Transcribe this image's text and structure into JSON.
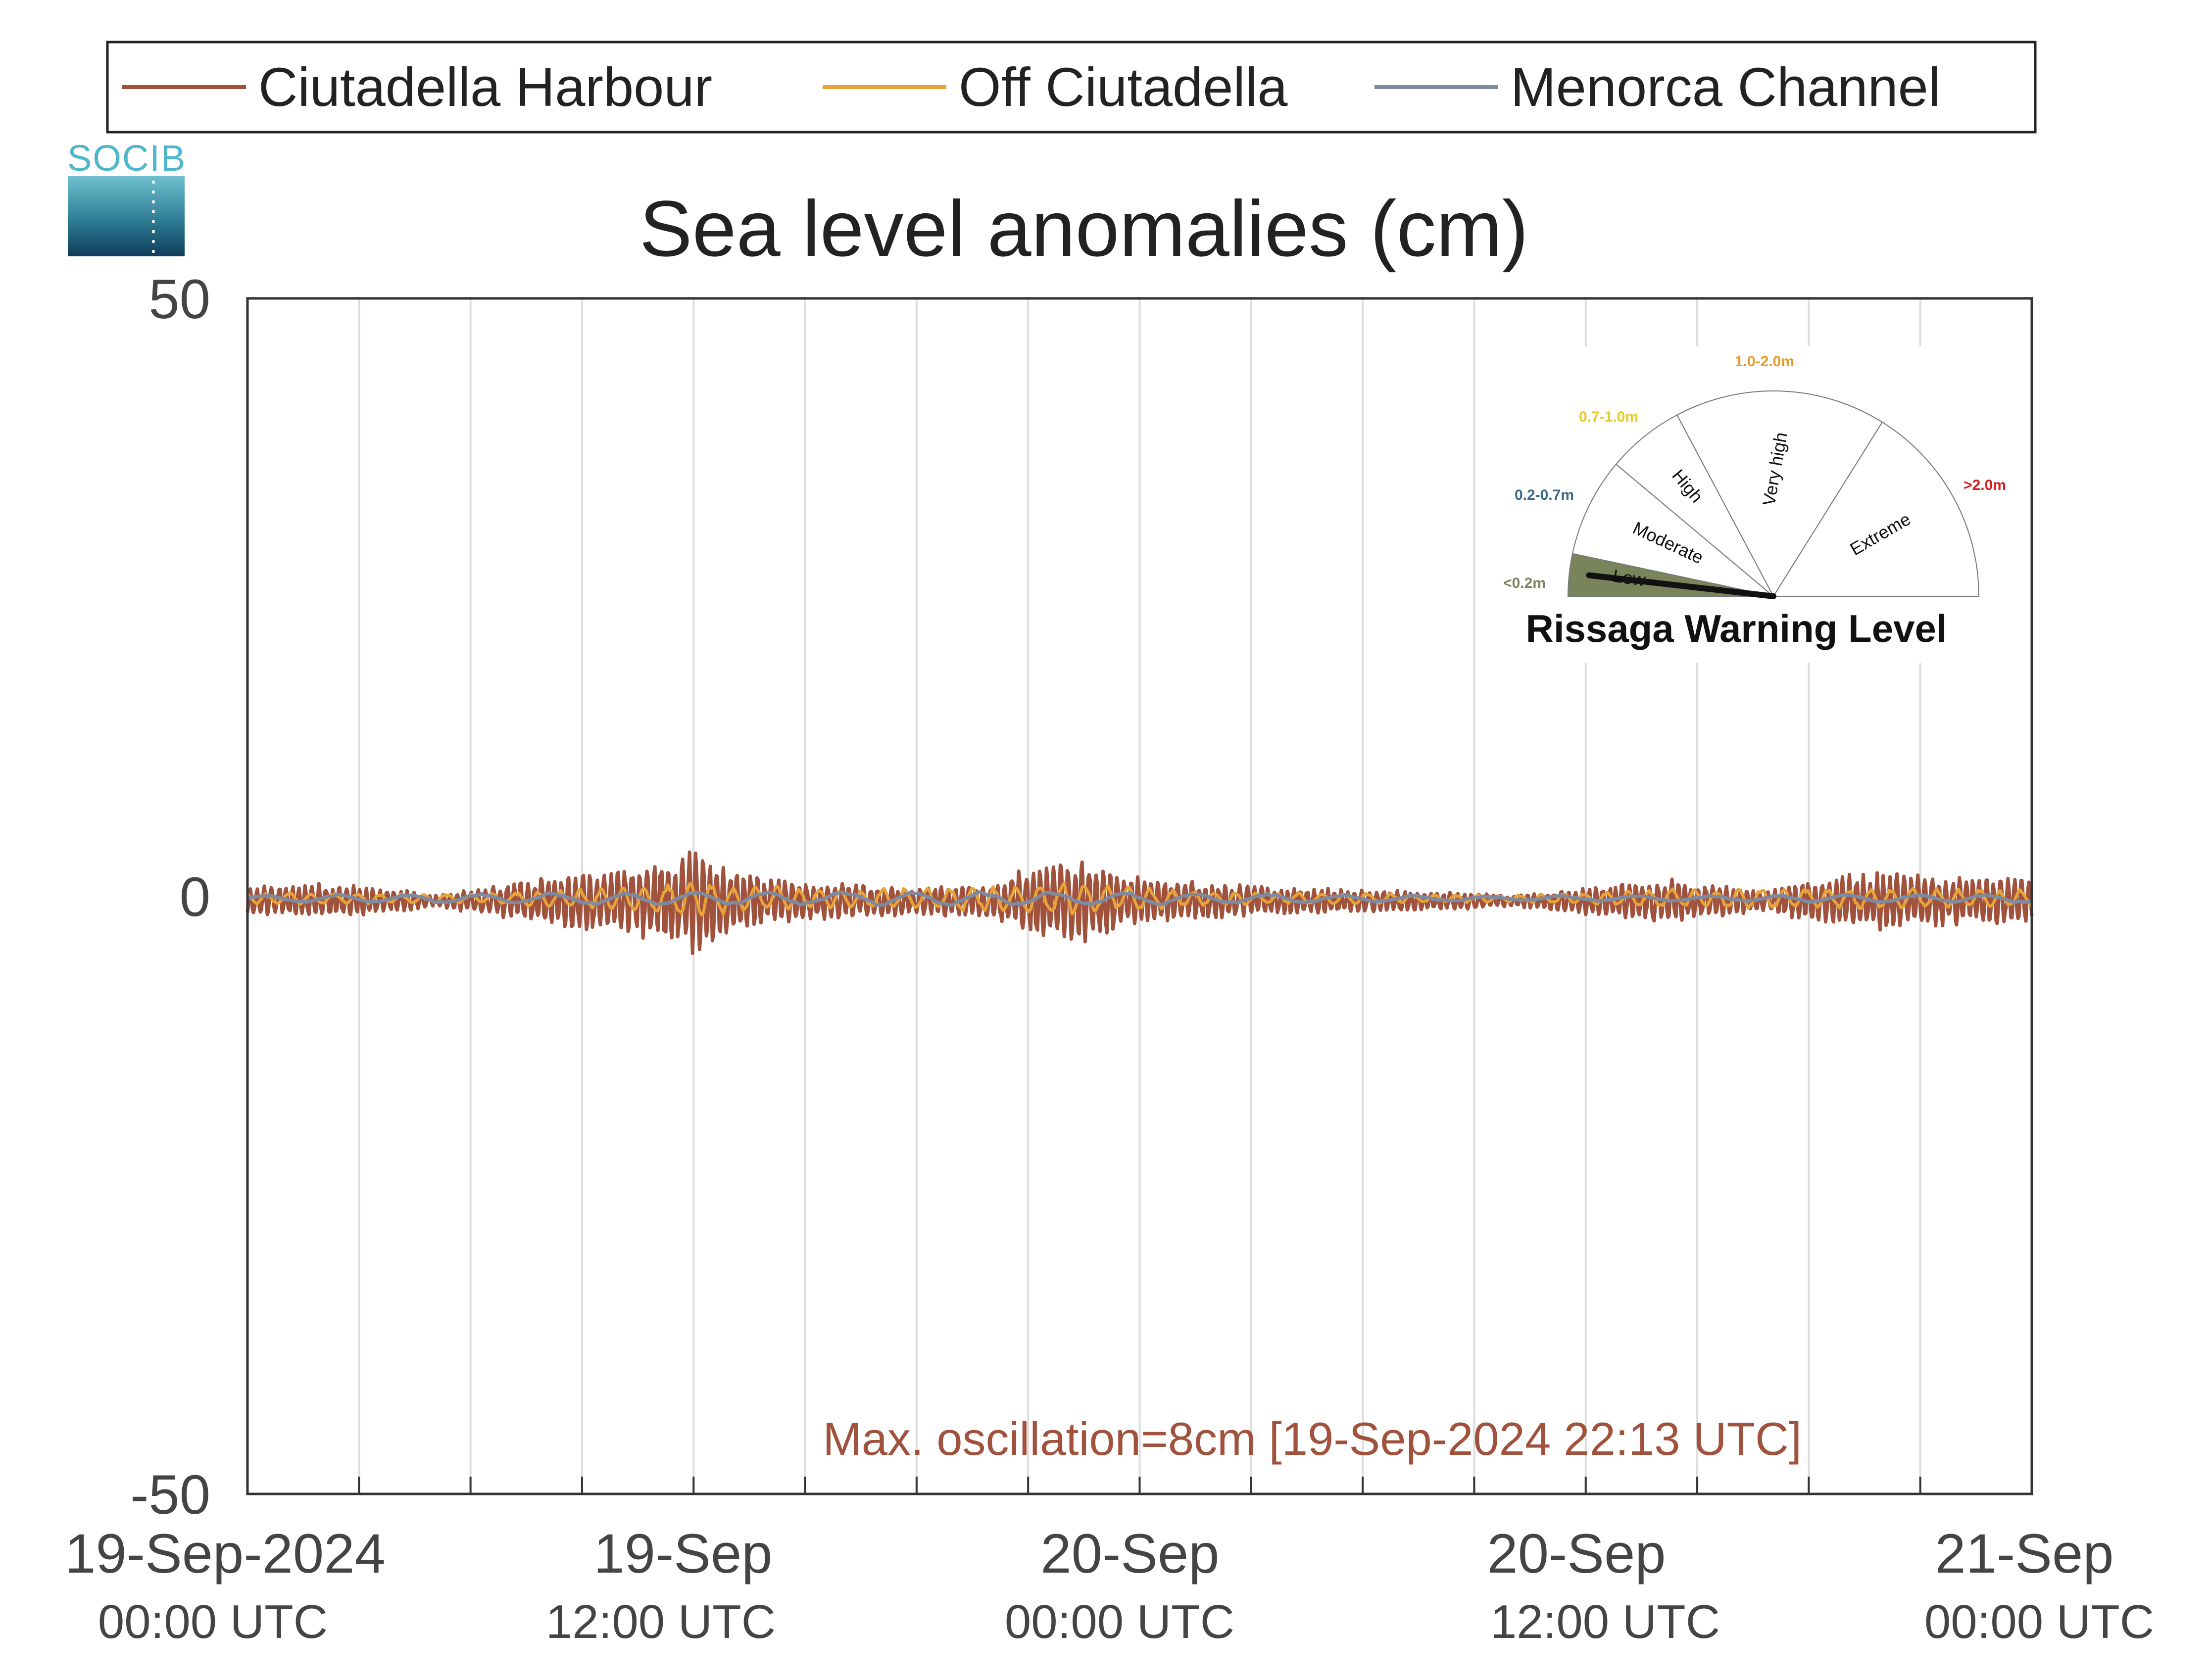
{
  "legend": {
    "entries": [
      {
        "name": "Ciutadella Harbour",
        "color": "#a0523d"
      },
      {
        "name": "Off Ciutadella",
        "color": "#e8a23a"
      },
      {
        "name": "Menorca Channel",
        "color": "#7f8aa0"
      }
    ]
  },
  "logo": {
    "text": "SOCIB"
  },
  "chart_data": {
    "type": "line",
    "title": "Sea level anomalies (cm)",
    "xlabel": "",
    "ylabel": "",
    "ylim": [
      -50,
      50
    ],
    "yticks": [
      {
        "value": 50,
        "label": "50"
      },
      {
        "value": 0,
        "label": "0"
      },
      {
        "value": -50,
        "label": "-50"
      }
    ],
    "xlim_hours": [
      0,
      48
    ],
    "xticks": [
      {
        "hour": 0,
        "label": "19-Sep-2024",
        "sub": "00:00 UTC"
      },
      {
        "hour": 12,
        "label": "19-Sep",
        "sub": "12:00 UTC"
      },
      {
        "hour": 24,
        "label": "20-Sep",
        "sub": "00:00 UTC"
      },
      {
        "hour": 36,
        "label": "20-Sep",
        "sub": "12:00 UTC"
      },
      {
        "hour": 48,
        "label": "21-Sep",
        "sub": "00:00 UTC"
      }
    ],
    "grid": "vertical every 3 hours",
    "legend_position": "top",
    "series": [
      {
        "name": "Ciutadella Harbour",
        "color": "#a0523d",
        "envelope": [
          [
            0,
            1.2
          ],
          [
            2,
            1.5
          ],
          [
            4,
            1.0
          ],
          [
            5,
            0.5
          ],
          [
            7,
            1.5
          ],
          [
            9,
            2.5
          ],
          [
            10,
            3.0
          ],
          [
            11,
            3.5
          ],
          [
            12,
            4.5
          ],
          [
            13,
            3.0
          ],
          [
            14,
            2.0
          ],
          [
            16,
            1.5
          ],
          [
            18,
            1.2
          ],
          [
            20,
            1.5
          ],
          [
            21,
            3.0
          ],
          [
            22,
            4.0
          ],
          [
            23,
            3.0
          ],
          [
            24,
            2.0
          ],
          [
            26,
            1.5
          ],
          [
            28,
            1.2
          ],
          [
            30,
            1.0
          ],
          [
            32,
            0.8
          ],
          [
            34,
            0.5
          ],
          [
            35,
            0.8
          ],
          [
            37,
            1.5
          ],
          [
            38,
            2.0
          ],
          [
            39,
            1.5
          ],
          [
            41,
            1.0
          ],
          [
            42,
            2.0
          ],
          [
            44,
            2.5
          ],
          [
            46,
            2.0
          ],
          [
            48,
            2.0
          ]
        ]
      },
      {
        "name": "Off Ciutadella",
        "color": "#e8a23a",
        "envelope": [
          [
            0,
            0.5
          ],
          [
            6,
            0.4
          ],
          [
            11,
            1.2
          ],
          [
            12,
            1.5
          ],
          [
            16,
            0.8
          ],
          [
            21,
            1.2
          ],
          [
            22,
            1.4
          ],
          [
            26,
            0.6
          ],
          [
            34,
            0.3
          ],
          [
            38,
            0.8
          ],
          [
            42,
            0.9
          ],
          [
            48,
            0.8
          ]
        ]
      },
      {
        "name": "Menorca Channel",
        "color": "#7f8aa0",
        "envelope": [
          [
            0,
            0.3
          ],
          [
            12,
            0.6
          ],
          [
            22,
            0.6
          ],
          [
            34,
            0.2
          ],
          [
            48,
            0.4
          ]
        ]
      }
    ],
    "annotation": {
      "text": "Max. oscillation=8cm [19-Sep-2024 22:13 UTC]",
      "color": "#a0523d"
    }
  },
  "gauge": {
    "title": "Rissaga Warning Level",
    "current_level": "Low",
    "sectors": [
      {
        "name": "Low",
        "range": "<0.2m",
        "color": "#7a845a"
      },
      {
        "name": "Moderate",
        "range": "0.2-0.7m",
        "color": "#3d6b85"
      },
      {
        "name": "High",
        "range": "0.7-1.0m",
        "color": "#e6cc2a"
      },
      {
        "name": "Very high",
        "range": "1.0-2.0m",
        "color": "#e69a2a"
      },
      {
        "name": "Extreme",
        "range": ">2.0m",
        "color": "#d42020"
      }
    ]
  }
}
